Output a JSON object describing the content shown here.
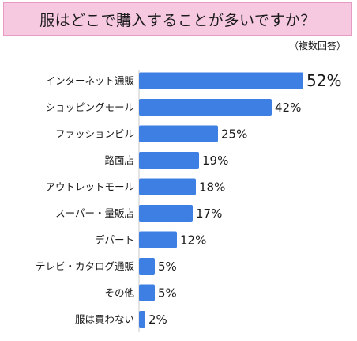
{
  "title": "服はどこで購入することが多いですか？",
  "subtitle": "（複数回答）",
  "colors": {
    "bar": "#3e7fe3",
    "title_bg": "#f6c9e1",
    "axis": "#c9c9c9"
  },
  "chart_data": {
    "type": "bar",
    "orientation": "horizontal",
    "title": "服はどこで購入することが多いですか？",
    "subtitle": "（複数回答）",
    "categories": [
      "インターネット通販",
      "ショッピングモール",
      "ファッションビル",
      "路面店",
      "アウトレットモール",
      "スーパー・量販店",
      "デパート",
      "テレビ・カタログ通販",
      "その他",
      "服は買わない"
    ],
    "values": [
      52,
      42,
      25,
      19,
      18,
      17,
      12,
      5,
      5,
      2
    ],
    "value_labels": [
      "52%",
      "42%",
      "25%",
      "19%",
      "18%",
      "17%",
      "12%",
      "5%",
      "5%",
      "2%"
    ],
    "unit": "%",
    "xlim": [
      0,
      55
    ],
    "grid": false,
    "legend": "none"
  }
}
